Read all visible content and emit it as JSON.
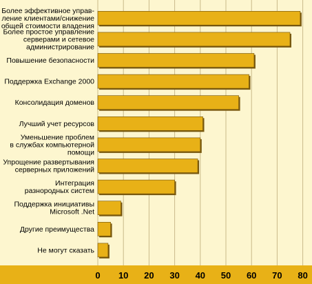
{
  "chart_data": {
    "type": "bar",
    "orientation": "horizontal",
    "categories": [
      "Более эффективное управле- ние клиентами/снижение общей стоимости владения",
      "Более простое управление серверами и сетевое администрирование",
      "Повышение безопасности",
      "Поддержка Exchange 2000",
      "Консолидация доменов",
      "Лучший учет ресурсов",
      "Уменьшение проблем в службах компьютерной помощи",
      "Упрощение развертывания серверных приложений",
      "Интеграция разнородных систем",
      "Поддержка инициативы Microsoft .Net",
      "Другие преимущества",
      "Не могут сказать"
    ],
    "category_lines": [
      [
        "Более эффективное управ-",
        "ление клиентами/снижение",
        "общей стоимости владения"
      ],
      [
        "Более простое управление",
        "серверами и сетевое",
        "администрирование"
      ],
      [
        "Повышение безопасности"
      ],
      [
        "Поддержка Exchange 2000"
      ],
      [
        "Консолидация доменов"
      ],
      [
        "Лучший учет ресурсов"
      ],
      [
        "Уменьшение проблем",
        "в службах компьютерной",
        "помощи"
      ],
      [
        "Упрощение развертывания",
        "серверных приложений"
      ],
      [
        "Интеграция",
        "разнородных систем"
      ],
      [
        "Поддержка инициативы",
        "Microsoft .Net"
      ],
      [
        "Другие преимущества"
      ],
      [
        "Не могут сказать"
      ]
    ],
    "values": [
      79,
      75,
      61,
      59,
      55,
      41,
      40,
      39,
      30,
      9,
      5,
      4
    ],
    "xticks": [
      0,
      10,
      20,
      30,
      40,
      50,
      60,
      70,
      80
    ],
    "xlim": [
      0,
      82
    ],
    "grid": "vertical",
    "bar_color": "#e8b117",
    "bar_shadow_color": "#7a5a10",
    "background_color": "#fdf6cf",
    "axis_band_color": "#e8b117"
  }
}
